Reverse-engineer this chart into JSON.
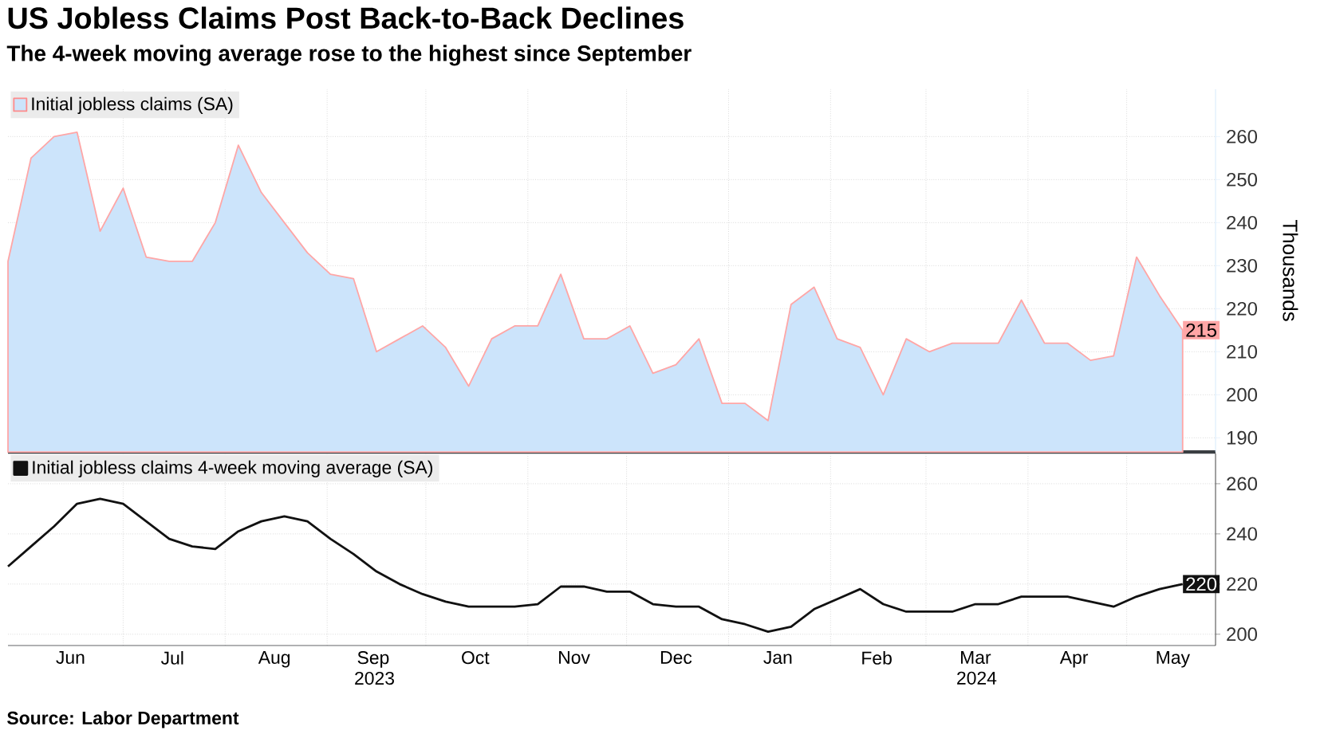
{
  "chart_data": [
    {
      "type": "area",
      "title": "US Jobless Claims Post Back-to-Back Declines",
      "subtitle": "The 4-week moving average rose to the highest since September",
      "ylabel": "Thousands",
      "x": [
        "2023-05-27",
        "2023-06-03",
        "2023-06-10",
        "2023-06-17",
        "2023-06-24",
        "2023-07-01",
        "2023-07-08",
        "2023-07-15",
        "2023-07-22",
        "2023-07-29",
        "2023-08-05",
        "2023-08-12",
        "2023-08-19",
        "2023-08-26",
        "2023-09-02",
        "2023-09-09",
        "2023-09-16",
        "2023-09-23",
        "2023-09-30",
        "2023-10-07",
        "2023-10-14",
        "2023-10-21",
        "2023-10-28",
        "2023-11-04",
        "2023-11-11",
        "2023-11-18",
        "2023-11-25",
        "2023-12-02",
        "2023-12-09",
        "2023-12-16",
        "2023-12-23",
        "2023-12-30",
        "2024-01-06",
        "2024-01-13",
        "2024-01-20",
        "2024-01-27",
        "2024-02-03",
        "2024-02-10",
        "2024-02-17",
        "2024-02-24",
        "2024-03-02",
        "2024-03-09",
        "2024-03-16",
        "2024-03-23",
        "2024-03-30",
        "2024-04-06",
        "2024-04-13",
        "2024-04-20",
        "2024-04-27",
        "2024-05-04",
        "2024-05-11",
        "2024-05-18"
      ],
      "series": [
        {
          "name": "Initial jobless claims (SA)",
          "color": "#cce4fb",
          "values": [
            231,
            255,
            260,
            261,
            238,
            248,
            232,
            231,
            231,
            240,
            258,
            247,
            240,
            233,
            228,
            227,
            210,
            213,
            216,
            211,
            202,
            213,
            216,
            216,
            228,
            213,
            213,
            216,
            205,
            207,
            213,
            198,
            198,
            194,
            221,
            225,
            213,
            211,
            200,
            213,
            210,
            212,
            212,
            212,
            222,
            212,
            212,
            208,
            209,
            232,
            223,
            215
          ],
          "value_labels": [
            null,
            null,
            null,
            null,
            null,
            null,
            null,
            null,
            null,
            null,
            null,
            null,
            null,
            null,
            null,
            null,
            null,
            null,
            null,
            null,
            null,
            null,
            null,
            null,
            null,
            null,
            null,
            null,
            null,
            null,
            null,
            null,
            null,
            null,
            null,
            null,
            null,
            null,
            null,
            null,
            null,
            null,
            null,
            null,
            null,
            null,
            null,
            null,
            null,
            null,
            null,
            "215"
          ]
        }
      ],
      "xlim": [
        "2023-05-27",
        "2024-05-28"
      ],
      "ylim": [
        186.7,
        271
      ],
      "yticks": [
        190,
        200,
        210,
        220,
        230,
        240,
        250,
        260
      ],
      "xticks": [
        {
          "value": "2023-07-01",
          "label": null
        },
        {
          "value": "2023-08-01",
          "label": null
        },
        {
          "value": "2023-09-01",
          "label": null
        },
        {
          "value": "2023-10-01",
          "label": null
        },
        {
          "value": "2023-11-01",
          "label": null
        },
        {
          "value": "2023-12-01",
          "label": null
        },
        {
          "value": "2024-01-01",
          "label": null
        },
        {
          "value": "2024-02-01",
          "label": null
        },
        {
          "value": "2024-03-01",
          "label": null
        },
        {
          "value": "2024-04-01",
          "label": null
        },
        {
          "value": "2024-05-01",
          "label": null
        }
      ],
      "tick_labels": "y",
      "grid": true,
      "legend": "top left",
      "marker": "none"
    },
    {
      "type": "line",
      "x": [
        "2023-05-27",
        "2023-06-03",
        "2023-06-10",
        "2023-06-17",
        "2023-06-24",
        "2023-07-01",
        "2023-07-08",
        "2023-07-15",
        "2023-07-22",
        "2023-07-29",
        "2023-08-05",
        "2023-08-12",
        "2023-08-19",
        "2023-08-26",
        "2023-09-02",
        "2023-09-09",
        "2023-09-16",
        "2023-09-23",
        "2023-09-30",
        "2023-10-07",
        "2023-10-14",
        "2023-10-21",
        "2023-10-28",
        "2023-11-04",
        "2023-11-11",
        "2023-11-18",
        "2023-11-25",
        "2023-12-02",
        "2023-12-09",
        "2023-12-16",
        "2023-12-23",
        "2023-12-30",
        "2024-01-06",
        "2024-01-13",
        "2024-01-20",
        "2024-01-27",
        "2024-02-03",
        "2024-02-10",
        "2024-02-17",
        "2024-02-24",
        "2024-03-02",
        "2024-03-09",
        "2024-03-16",
        "2024-03-23",
        "2024-03-30",
        "2024-04-06",
        "2024-04-13",
        "2024-04-20",
        "2024-04-27",
        "2024-05-04",
        "2024-05-11",
        "2024-05-18"
      ],
      "series": [
        {
          "name": "Initial jobless claims 4-week moving average (SA)",
          "color": "#111111",
          "values": [
            227,
            235,
            243,
            252,
            254,
            252,
            245,
            238,
            235,
            234,
            241,
            245,
            247,
            245,
            238,
            232,
            225,
            220,
            216,
            213,
            211,
            211,
            211,
            212,
            219,
            219,
            217,
            217,
            212,
            211,
            211,
            206,
            204,
            201,
            203,
            210,
            214,
            218,
            212,
            209,
            209,
            209,
            212,
            212,
            215,
            215,
            215,
            213,
            211,
            215,
            218,
            220
          ],
          "value_labels": [
            null,
            null,
            null,
            null,
            null,
            null,
            null,
            null,
            null,
            null,
            null,
            null,
            null,
            null,
            null,
            null,
            null,
            null,
            null,
            null,
            null,
            null,
            null,
            null,
            null,
            null,
            null,
            null,
            null,
            null,
            null,
            null,
            null,
            null,
            null,
            null,
            null,
            null,
            null,
            null,
            null,
            null,
            null,
            null,
            null,
            null,
            null,
            null,
            null,
            null,
            null,
            "220"
          ]
        }
      ],
      "xlim": [
        "2023-05-27",
        "2024-05-28"
      ],
      "ylim": [
        195.5,
        272
      ],
      "yticks": [
        200,
        220,
        240,
        260
      ],
      "xticks": [
        {
          "value": "2023-06-15",
          "label": "Jun"
        },
        {
          "value": "2023-07-01",
          "label": null
        },
        {
          "value": "2023-07-16",
          "label": "Jul"
        },
        {
          "value": "2023-08-01",
          "label": null
        },
        {
          "value": "2023-08-16",
          "label": "Aug"
        },
        {
          "value": "2023-09-01",
          "label": null
        },
        {
          "value": "2023-09-15",
          "label": "Sep 2023"
        },
        {
          "value": "2023-10-01",
          "label": null
        },
        {
          "value": "2023-10-16",
          "label": "Oct"
        },
        {
          "value": "2023-11-01",
          "label": null
        },
        {
          "value": "2023-11-15",
          "label": "Nov"
        },
        {
          "value": "2023-12-01",
          "label": null
        },
        {
          "value": "2023-12-16",
          "label": "Dec"
        },
        {
          "value": "2024-01-01",
          "label": null
        },
        {
          "value": "2024-01-16",
          "label": "Jan"
        },
        {
          "value": "2024-02-01",
          "label": null
        },
        {
          "value": "2024-02-15",
          "label": "Feb"
        },
        {
          "value": "2024-03-01",
          "label": null
        },
        {
          "value": "2024-03-16",
          "label": "Mar 2024"
        },
        {
          "value": "2024-04-01",
          "label": null
        },
        {
          "value": "2024-04-15",
          "label": "Apr"
        },
        {
          "value": "2024-05-01",
          "label": null
        },
        {
          "value": "2024-05-15",
          "label": "May"
        }
      ],
      "grid": true,
      "legend": "top left",
      "marker": "none",
      "annotations": [
        "Source: Labor Department"
      ]
    }
  ]
}
